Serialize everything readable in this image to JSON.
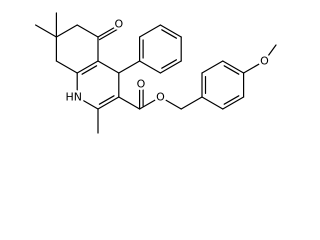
{
  "atoms": [
    "O",
    "HN",
    "O",
    "O",
    "O"
  ]
}
